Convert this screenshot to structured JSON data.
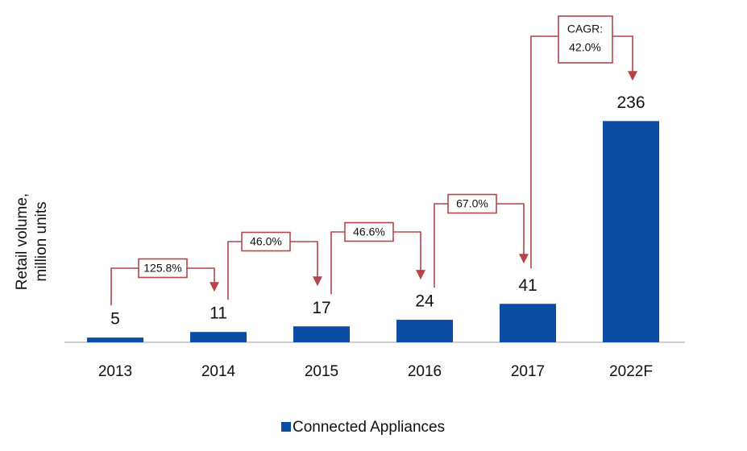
{
  "chart_data": {
    "type": "bar",
    "categories": [
      "2013",
      "2014",
      "2015",
      "2016",
      "2017",
      "2022F"
    ],
    "series": [
      {
        "name": "Connected Appliances",
        "color": "#0b4da2",
        "values": [
          5,
          11,
          17,
          24,
          41,
          236
        ]
      }
    ],
    "ylim": [
      0,
      250
    ],
    "y_axis_label": [
      "Retail volume,",
      "million units"
    ],
    "growth_labels": [
      "125.8%",
      "46.0%",
      "46.6%",
      "67.0%"
    ],
    "cagr_label": [
      "CAGR:",
      "42.0%"
    ],
    "annotation_color": "#b5454a"
  }
}
